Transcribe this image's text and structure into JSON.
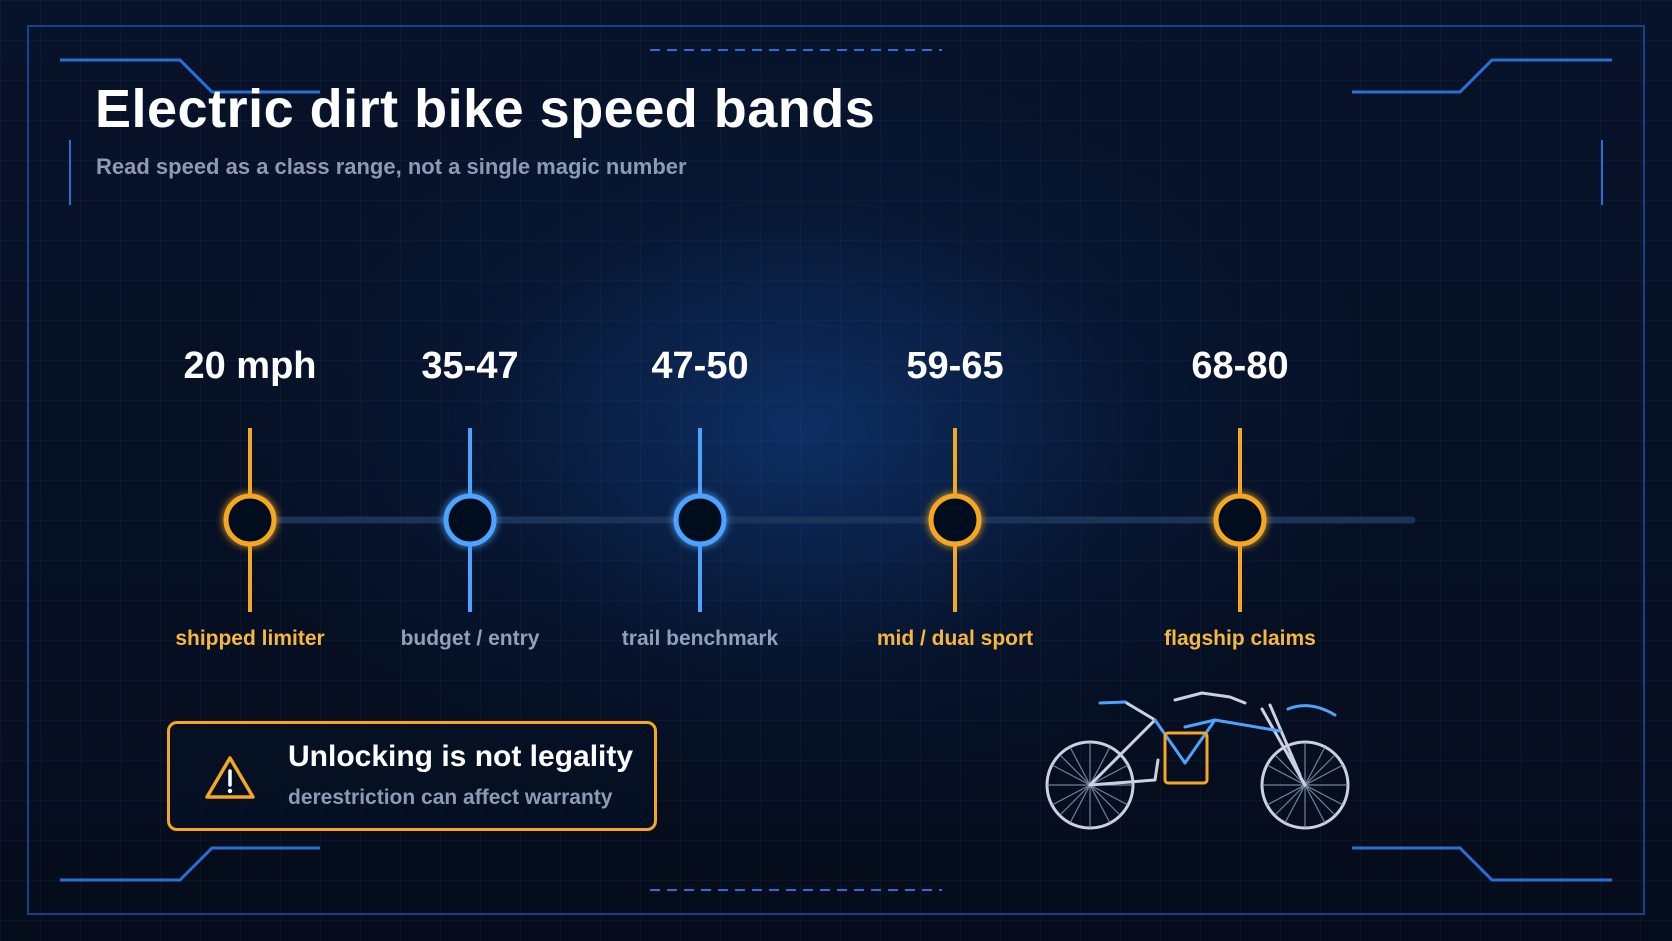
{
  "title": "Electric dirt bike speed bands",
  "subtitle": "Read speed as a class range, not a single magic number",
  "colors": {
    "accent_orange": "#f5a623",
    "accent_blue": "#4ea3ff",
    "track": "#1b3356",
    "label_orange": "#f6b73c",
    "label_gray": "#8fa0ba"
  },
  "bands": [
    {
      "value": "20 mph",
      "label": "shipped limiter",
      "color": "orange"
    },
    {
      "value": "35-47",
      "label": "budget / entry",
      "color": "blue"
    },
    {
      "value": "47-50",
      "label": "trail benchmark",
      "color": "blue"
    },
    {
      "value": "59-65",
      "label": "mid / dual sport",
      "color": "orange"
    },
    {
      "value": "68-80",
      "label": "flagship claims",
      "color": "orange"
    }
  ],
  "warning": {
    "icon": "warning-triangle-icon",
    "title": "Unlocking is not legality",
    "subtitle": "derestriction can affect warranty"
  },
  "illustration": {
    "icon": "dirt-bike-icon"
  }
}
